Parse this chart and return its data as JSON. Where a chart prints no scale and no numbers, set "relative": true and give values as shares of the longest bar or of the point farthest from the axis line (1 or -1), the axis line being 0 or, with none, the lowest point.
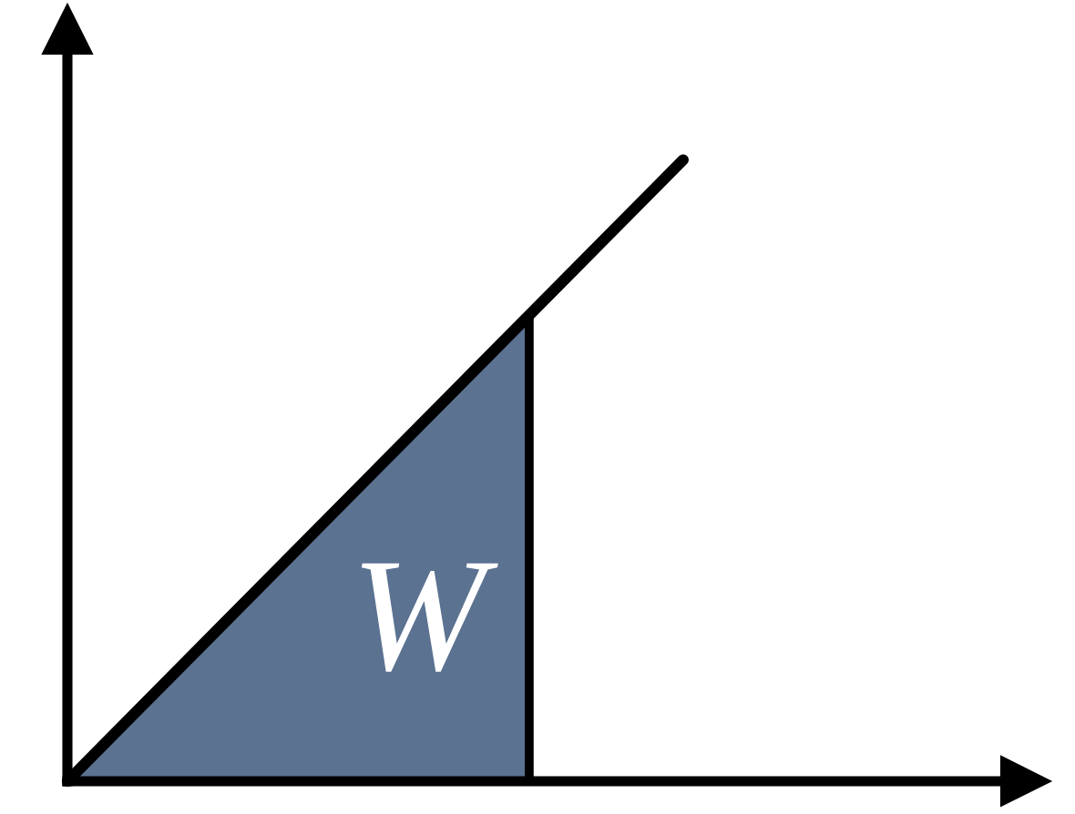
{
  "chart_data": {
    "type": "line",
    "relative": true,
    "categories": [
      null,
      null,
      null,
      null,
      null
    ],
    "series": [
      {
        "type": "area",
        "name": "W",
        "color": "#5b7291",
        "values": [
          0,
          0.25,
          0.5,
          0.75,
          null
        ]
      },
      {
        "color": "#000000",
        "values": [
          0,
          0.25,
          0.5,
          0.75,
          1
        ]
      }
    ]
  }
}
